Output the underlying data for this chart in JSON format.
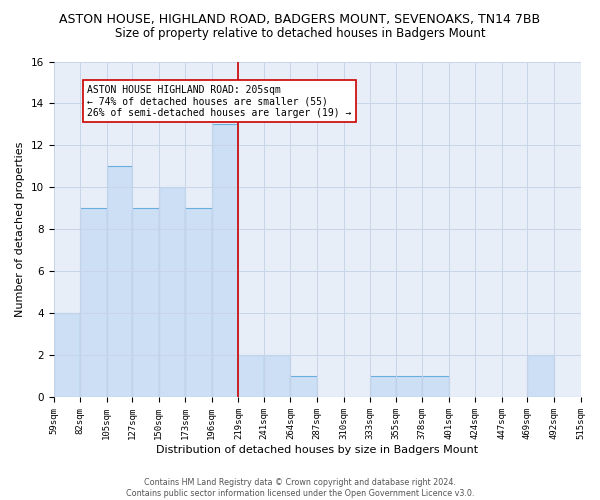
{
  "title": "ASTON HOUSE, HIGHLAND ROAD, BADGERS MOUNT, SEVENOAKS, TN14 7BB",
  "subtitle": "Size of property relative to detached houses in Badgers Mount",
  "xlabel": "Distribution of detached houses by size in Badgers Mount",
  "ylabel": "Number of detached properties",
  "bins": [
    59,
    82,
    105,
    127,
    150,
    173,
    196,
    219,
    241,
    264,
    287,
    310,
    333,
    355,
    378,
    401,
    424,
    447,
    469,
    492,
    515
  ],
  "counts": [
    4,
    9,
    11,
    9,
    10,
    9,
    13,
    2,
    2,
    1,
    0,
    0,
    1,
    1,
    1,
    0,
    0,
    0,
    2,
    0
  ],
  "bar_color": "#ccdff5",
  "bar_edge_color": "#6aaee0",
  "reference_line_x": 219,
  "reference_line_color": "#cc0000",
  "annotation_box_text": "ASTON HOUSE HIGHLAND ROAD: 205sqm\n← 74% of detached houses are smaller (55)\n26% of semi-detached houses are larger (19) →",
  "annotation_box_color": "#cc0000",
  "annotation_box_bg": "#ffffff",
  "ylim": [
    0,
    16
  ],
  "yticks": [
    0,
    2,
    4,
    6,
    8,
    10,
    12,
    14,
    16
  ],
  "tick_labels": [
    "59sqm",
    "82sqm",
    "105sqm",
    "127sqm",
    "150sqm",
    "173sqm",
    "196sqm",
    "219sqm",
    "241sqm",
    "264sqm",
    "287sqm",
    "310sqm",
    "333sqm",
    "355sqm",
    "378sqm",
    "401sqm",
    "424sqm",
    "447sqm",
    "469sqm",
    "492sqm",
    "515sqm"
  ],
  "footer_text": "Contains HM Land Registry data © Crown copyright and database right 2024.\nContains public sector information licensed under the Open Government Licence v3.0.",
  "grid_color": "#c8d4e8",
  "bg_color": "#e8eef8",
  "title_fontsize": 9,
  "subtitle_fontsize": 8.5,
  "axis_label_fontsize": 8,
  "tick_fontsize": 6.5,
  "annotation_fontsize": 7.0,
  "footer_fontsize": 5.8
}
